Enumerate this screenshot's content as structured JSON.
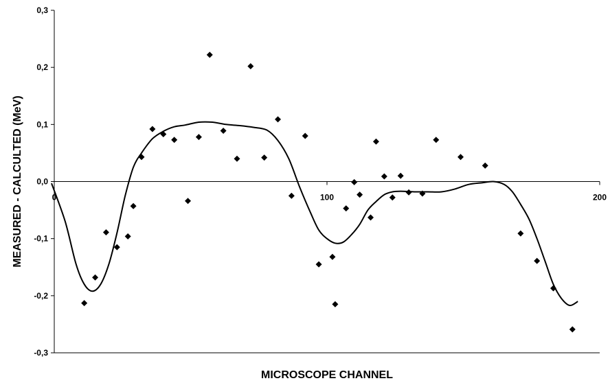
{
  "chart_data": {
    "type": "scatter",
    "title": "",
    "xlabel": "MICROSCOPE CHANNEL",
    "ylabel": "MEASURED - CALCULTED (MeV)",
    "xlim": [
      0,
      200
    ],
    "ylim": [
      -0.3,
      0.3
    ],
    "x_ticks": [
      0,
      100,
      200
    ],
    "x_tick_labels": [
      "0",
      "100",
      "200"
    ],
    "y_ticks": [
      -0.3,
      -0.2,
      -0.1,
      0.0,
      0.1,
      0.2,
      0.3
    ],
    "y_tick_labels": [
      "-0,3",
      "-0,2",
      "-0,1",
      "0,0",
      "0,1",
      "0,2",
      "0,3"
    ],
    "grid": false,
    "legend": "none",
    "zero_line": true,
    "colors": {
      "points": "#000000",
      "curve": "#000000",
      "axes": "#000000"
    },
    "series": [
      {
        "type": "scatter",
        "marker": "diamond",
        "x": [
          11,
          15,
          19,
          23,
          27,
          29,
          32,
          36,
          40,
          44,
          49,
          53,
          57,
          62,
          67,
          72,
          77,
          82,
          87,
          92,
          97,
          102,
          103,
          107,
          110,
          112,
          116,
          118,
          121,
          124,
          127,
          130,
          135,
          140,
          149,
          158,
          171,
          177,
          183,
          190
        ],
        "y": [
          -0.213,
          -0.168,
          -0.089,
          -0.115,
          -0.096,
          -0.043,
          0.043,
          0.092,
          0.083,
          0.073,
          -0.034,
          0.078,
          0.222,
          0.089,
          0.04,
          0.202,
          0.042,
          0.109,
          -0.025,
          0.08,
          -0.145,
          -0.132,
          -0.215,
          -0.047,
          -0.001,
          -0.023,
          -0.063,
          0.07,
          0.009,
          -0.028,
          0.01,
          -0.019,
          -0.021,
          0.073,
          0.043,
          0.028,
          -0.091,
          -0.139,
          -0.187,
          -0.259
        ]
      },
      {
        "type": "line",
        "smooth": true,
        "x": [
          -1,
          4,
          8,
          11,
          14,
          17,
          20,
          23,
          26,
          29,
          32,
          36,
          40,
          44,
          48,
          53,
          58,
          63,
          68,
          73,
          78,
          82,
          86,
          90,
          94,
          97,
          100,
          103,
          106,
          109,
          112,
          115,
          118,
          121,
          124,
          127,
          132,
          137,
          142,
          147,
          152,
          157,
          161,
          165,
          168,
          171,
          174,
          177,
          180,
          183,
          186,
          189,
          192
        ],
        "y": [
          -0.003,
          -0.07,
          -0.145,
          -0.18,
          -0.192,
          -0.18,
          -0.145,
          -0.09,
          -0.025,
          0.025,
          0.05,
          0.075,
          0.088,
          0.096,
          0.099,
          0.104,
          0.104,
          0.1,
          0.098,
          0.095,
          0.09,
          0.072,
          0.04,
          -0.01,
          -0.055,
          -0.085,
          -0.1,
          -0.108,
          -0.106,
          -0.093,
          -0.075,
          -0.05,
          -0.035,
          -0.023,
          -0.018,
          -0.017,
          -0.018,
          -0.018,
          -0.018,
          -0.013,
          -0.005,
          -0.002,
          0.0,
          -0.005,
          -0.018,
          -0.04,
          -0.065,
          -0.1,
          -0.14,
          -0.18,
          -0.205,
          -0.217,
          -0.21
        ]
      }
    ]
  }
}
